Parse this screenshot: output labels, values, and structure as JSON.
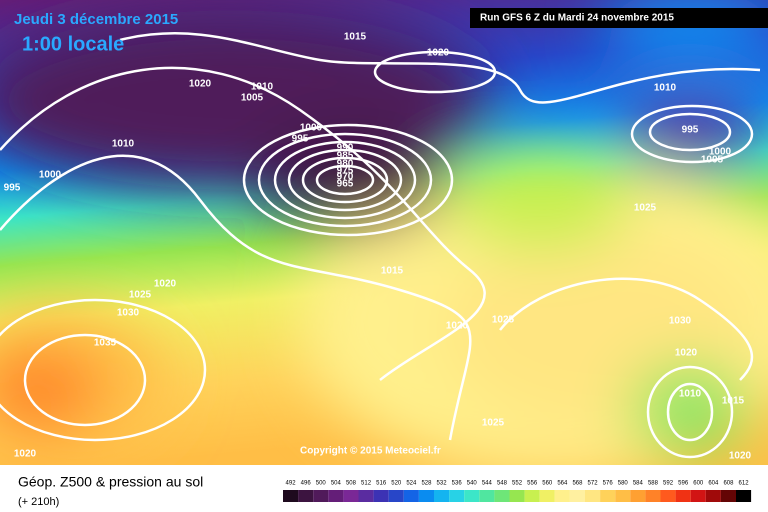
{
  "header": {
    "date": "Jeudi 3 décembre 2015",
    "time": "1:00 locale",
    "run": "Run GFS 6 Z du Mardi 24 novembre 2015"
  },
  "copyright": "Copyright © 2015 Meteociel.fr",
  "isobar_labels": [
    1015,
    1020,
    1020,
    1010,
    1005,
    1010,
    1010,
    1000,
    995,
    1000,
    995,
    990,
    985,
    980,
    975,
    970,
    965,
    995,
    1000,
    1005,
    1025,
    1015,
    1020,
    1025,
    1030,
    1035,
    1020,
    1025,
    1030,
    1020,
    1010,
    1015,
    1025,
    1020,
    1020
  ],
  "footer": {
    "title": "Géop. Z500 & pression au sol",
    "lead": "(+ 210h)"
  },
  "scale": {
    "values": [
      492,
      496,
      500,
      504,
      508,
      512,
      516,
      520,
      524,
      528,
      532,
      536,
      540,
      544,
      548,
      552,
      556,
      560,
      564,
      568,
      572,
      576,
      580,
      584,
      588,
      592,
      596,
      600,
      604,
      608,
      612
    ],
    "colors": [
      "#1e0a1e",
      "#3c1440",
      "#501a5a",
      "#641e78",
      "#7a2896",
      "#5a2ca0",
      "#3c32b4",
      "#2846c8",
      "#1464e6",
      "#0a8cf0",
      "#14b4f0",
      "#28d2e6",
      "#3ce6c8",
      "#50e6a0",
      "#6ee678",
      "#96e650",
      "#c8f050",
      "#f0f064",
      "#fff08c",
      "#fff0a0",
      "#ffe682",
      "#ffd25a",
      "#ffbe46",
      "#ffa032",
      "#ff8228",
      "#ff5a1e",
      "#f03214",
      "#d21414",
      "#a00a0a",
      "#640505",
      "#000000"
    ]
  }
}
